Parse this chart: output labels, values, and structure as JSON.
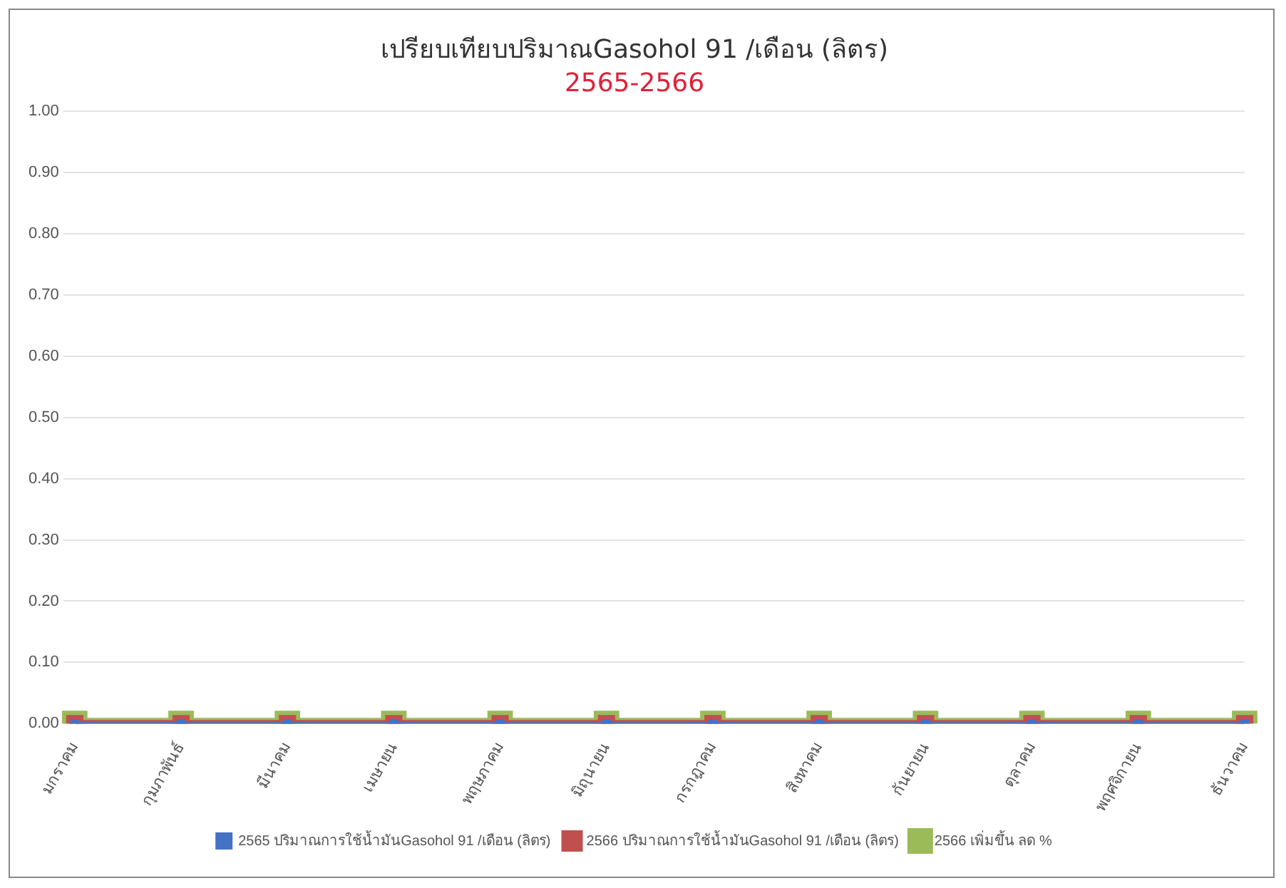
{
  "chart_data": {
    "type": "line",
    "title": "เปรียบเทียบปริมาณGasohol 91 /เดือน (ลิตร)",
    "subtitle": "2565-2566",
    "categories": [
      "มกราคม",
      "กุมภาพันธ์",
      "มีนาคม",
      "เมษายน",
      "พฤษภาคม",
      "มิถุนายน",
      "กรกฎาคม",
      "สิงหาคม",
      "กันยายน",
      "ตุลาคม",
      "พฤศจิกายน",
      "ธันวาคม"
    ],
    "series": [
      {
        "name": "2565 ปริมาณการใช้น้ำมันGasohol 91 /เดือน (ลิตร)",
        "color": "#4472c4",
        "values": [
          0,
          0,
          0,
          0,
          0,
          0,
          0,
          0,
          0,
          0,
          0,
          0
        ]
      },
      {
        "name": "2566 ปริมาณการใช้น้ำมันGasohol 91 /เดือน (ลิตร)",
        "color": "#c0504d",
        "values": [
          0,
          0,
          0,
          0,
          0,
          0,
          0,
          0,
          0,
          0,
          0,
          0
        ]
      },
      {
        "name": "2566 เพิ่มขึ้น ลด %",
        "color": "#9bbb59",
        "values": [
          0,
          0,
          0,
          0,
          0,
          0,
          0,
          0,
          0,
          0,
          0,
          0
        ]
      }
    ],
    "ylim": [
      0,
      1
    ],
    "yticks": [
      {
        "value": 0,
        "label": "0.00"
      },
      {
        "value": 0.1,
        "label": "0.10"
      },
      {
        "value": 0.2,
        "label": "0.20"
      },
      {
        "value": 0.3,
        "label": "0.30"
      },
      {
        "value": 0.4,
        "label": "0.40"
      },
      {
        "value": 0.5,
        "label": "0.50"
      },
      {
        "value": 0.6,
        "label": "0.60"
      },
      {
        "value": 0.7,
        "label": "0.70"
      },
      {
        "value": 0.8,
        "label": "0.80"
      },
      {
        "value": 0.9,
        "label": "0.90"
      },
      {
        "value": 1,
        "label": "1.00"
      }
    ],
    "grid": "y",
    "legend": "bottom",
    "marker": "square",
    "line_style": "solid"
  }
}
